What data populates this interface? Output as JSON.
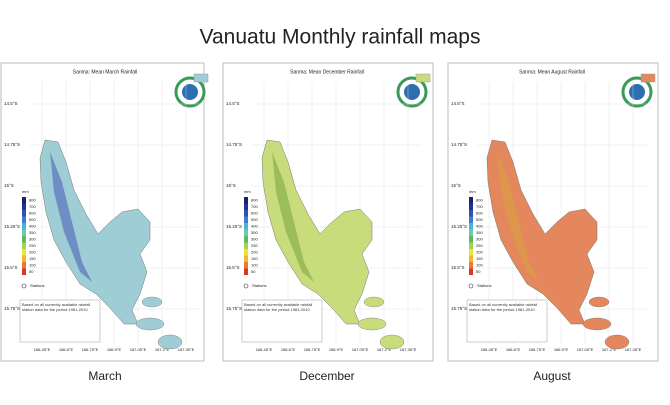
{
  "title": "Vanuatu Monthly rainfall maps",
  "maps": [
    {
      "caption": "March",
      "map_title": "Sanma: Mean March Rainfall",
      "color": "#9fcdd6",
      "relief": "#4f62b8"
    },
    {
      "caption": "December",
      "map_title": "Sanma: Mean December Rainfall",
      "color": "#c9dc7c",
      "relief": "#7fa848"
    },
    {
      "caption": "August",
      "map_title": "Sanma: Mean August Rainfall",
      "color": "#e4875c",
      "relief": "#d9a040"
    }
  ],
  "lat_labels": [
    "14.5°S",
    "14.75°S",
    "15°S",
    "15.25°S",
    "15.5°S",
    "15.75°S"
  ],
  "lon_labels": [
    "166.45°E",
    "166.6°E",
    "166.75°E",
    "166.9°E",
    "167.05°E",
    "167.2°E",
    "167.35°E"
  ],
  "legend_unit": "mm",
  "legend_values": [
    800,
    700,
    600,
    500,
    400,
    350,
    300,
    250,
    200,
    150,
    100,
    50
  ],
  "legend_colors": [
    "#1a1f6e",
    "#23318f",
    "#2f52b3",
    "#3b7fcb",
    "#4fb0d8",
    "#6cc7b5",
    "#5fb862",
    "#a6d34f",
    "#f0e23a",
    "#f3b630",
    "#ec7a2a",
    "#d63a22"
  ],
  "stations_label": "Stations",
  "note": "Based on all currently available rainfall station data for the period 1981-2010"
}
